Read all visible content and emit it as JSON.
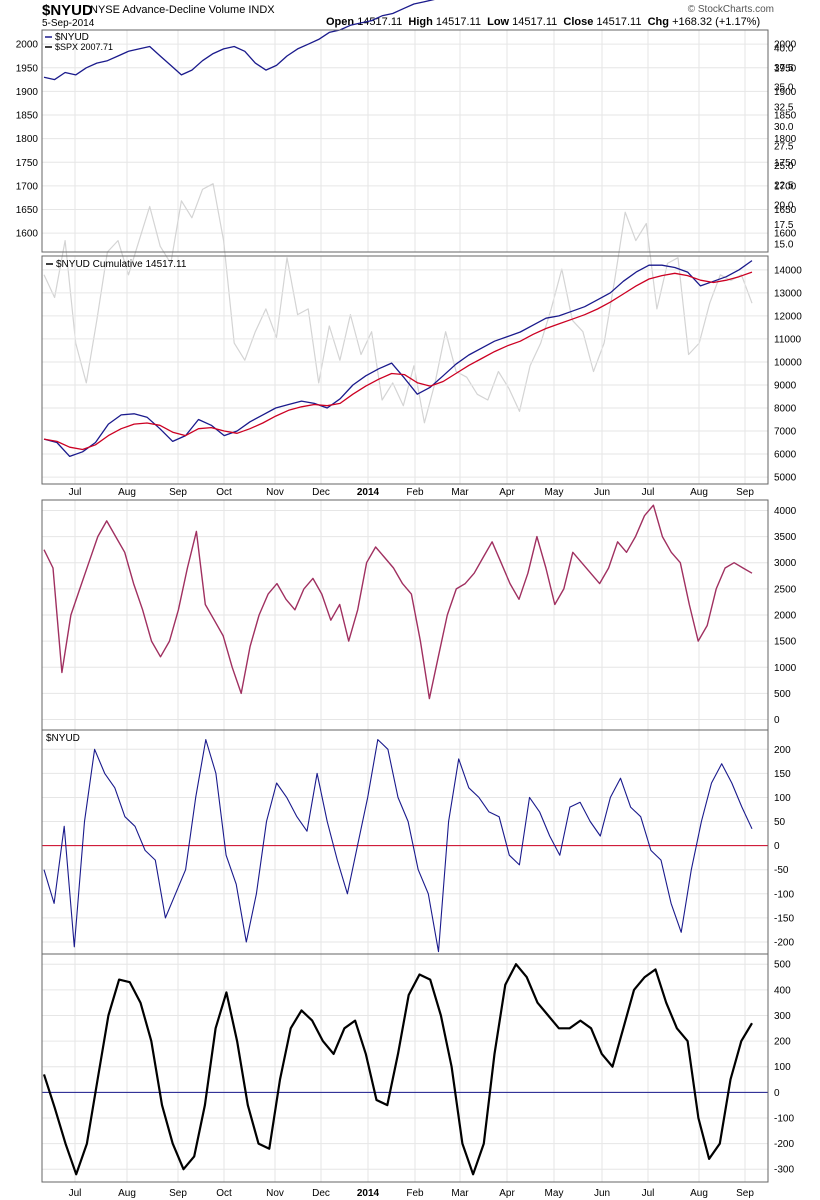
{
  "header": {
    "symbol": "$NYUD",
    "name": "NYSE Advance-Decline Volume INDX",
    "date": "5-Sep-2014",
    "open_label": "Open",
    "open": "14517.11",
    "high_label": "High",
    "high": "14517.11",
    "low_label": "Low",
    "low": "14517.11",
    "close_label": "Close",
    "close": "14517.11",
    "chg_label": "Chg",
    "chg": "+168.32 (+1.17%)",
    "watermark": "© StockCharts.com"
  },
  "colors": {
    "nyud_line": "#1a1a8c",
    "spx_line": "#d4d4d4",
    "moving_avg": "#cc0022",
    "panel3_line": "#a03060",
    "zero_line_red": "#cc0022",
    "zero_line_blue": "#1a1a8c",
    "oscillator": "#000000",
    "grid": "#e6e6e6",
    "frame": "#666666"
  },
  "chart_data": [
    {
      "type": "line",
      "panel": "price",
      "series": [
        {
          "name": "$NYUD",
          "values": [
            1840,
            1800,
            1900,
            1720,
            1650,
            1760,
            1880,
            1900,
            1840,
            1900,
            1960,
            1890,
            1860,
            1970,
            1940,
            1990,
            2000,
            1900,
            1720,
            1690,
            1740,
            1780,
            1730,
            1870,
            1770,
            1780,
            1650,
            1750,
            1690,
            1770,
            1700,
            1740,
            1620,
            1650,
            1610,
            1680,
            1580,
            1650,
            1740,
            1670,
            1660,
            1630,
            1620,
            1670,
            1640,
            1600,
            1680,
            1720,
            1780,
            1850,
            1760,
            1740,
            1670,
            1720,
            1830,
            1950,
            1900,
            1930,
            1780,
            1860,
            1870,
            1700,
            1720,
            1790,
            1840,
            1830,
            1840,
            1790
          ]
        },
        {
          "name": "$SPX",
          "values": [
            1930,
            1925,
            1940,
            1935,
            1950,
            1960,
            1965,
            1975,
            1985,
            1990,
            1995,
            1975,
            1955,
            1935,
            1945,
            1965,
            1980,
            1990,
            1995,
            1985,
            1960,
            1945,
            1955,
            1975,
            1990,
            2000,
            2010,
            2025,
            2030,
            2040,
            2045,
            2050,
            2060,
            2065,
            2075,
            2085,
            2090,
            2095,
            2100,
            2105,
            2110,
            2115,
            2120,
            2125,
            2130,
            2135,
            2140,
            2145,
            2150,
            2155,
            2160,
            2165,
            2160,
            2155,
            2160,
            2170,
            2185,
            2195,
            2200,
            2190,
            2180,
            2195,
            2210,
            2220,
            2230,
            2240,
            2245,
            2250
          ]
        }
      ],
      "ylim": [
        1560,
        2030
      ],
      "y_ticks": [
        "2000",
        "1950",
        "1900",
        "1850",
        "1800",
        "1750",
        "1700",
        "1650",
        "1600"
      ],
      "y2_ticks": [
        "40.0",
        "37.5",
        "35.0",
        "32.5",
        "30.0",
        "27.5",
        "25.0",
        "22.5",
        "20.0",
        "17.5",
        "15.0"
      ],
      "legend": [
        "$NYUD",
        "$SPX 2007.71"
      ],
      "legend_position": "top-left"
    },
    {
      "type": "line",
      "panel": "cumulative",
      "series": [
        {
          "name": "$NYUD Cumulative 14517.11",
          "values": [
            6650,
            6500,
            5900,
            6100,
            6500,
            7300,
            7700,
            7750,
            7600,
            7100,
            6550,
            6800,
            7500,
            7250,
            6800,
            7000,
            7400,
            7700,
            8000,
            8150,
            8300,
            8200,
            8000,
            8400,
            9000,
            9400,
            9700,
            9950,
            9300,
            8600,
            8900,
            9400,
            9900,
            10300,
            10600,
            10900,
            11100,
            11300,
            11600,
            11900,
            12000,
            12200,
            12400,
            12700,
            13000,
            13500,
            13900,
            14200,
            14200,
            14100,
            13900,
            13300,
            13500,
            13700,
            14000,
            14400
          ]
        },
        {
          "name": "MA",
          "values": [
            6650,
            6550,
            6300,
            6200,
            6400,
            6800,
            7100,
            7300,
            7350,
            7250,
            6950,
            6800,
            7100,
            7150,
            7000,
            6900,
            7100,
            7350,
            7650,
            7900,
            8050,
            8150,
            8100,
            8200,
            8600,
            8950,
            9250,
            9500,
            9450,
            9100,
            8950,
            9150,
            9500,
            9850,
            10150,
            10450,
            10700,
            10900,
            11200,
            11450,
            11650,
            11850,
            12050,
            12300,
            12600,
            12950,
            13300,
            13600,
            13750,
            13850,
            13750,
            13550,
            13450,
            13550,
            13700,
            13900
          ]
        }
      ],
      "ylim": [
        4700,
        14600
      ],
      "y_ticks": [
        "14000",
        "13000",
        "12000",
        "11000",
        "10000",
        "9000",
        "8000",
        "7000",
        "6000",
        "5000"
      ]
    },
    {
      "type": "line",
      "panel": "indicator",
      "series": [
        {
          "name": "",
          "values": [
            3250,
            2900,
            900,
            2000,
            2500,
            3000,
            3500,
            3800,
            3500,
            3200,
            2600,
            2100,
            1500,
            1200,
            1500,
            2100,
            2900,
            3600,
            2200,
            1900,
            1600,
            1000,
            500,
            1400,
            2000,
            2400,
            2600,
            2300,
            2100,
            2500,
            2700,
            2400,
            1900,
            2200,
            1500,
            2100,
            3000,
            3300,
            3100,
            2900,
            2600,
            2400,
            1500,
            400,
            1200,
            2000,
            2500,
            2600,
            2800,
            3100,
            3400,
            3000,
            2600,
            2300,
            2800,
            3500,
            2900,
            2200,
            2500,
            3200,
            3000,
            2800,
            2600,
            2900,
            3400,
            3200,
            3500,
            3900,
            4100,
            3500,
            3200,
            3000,
            2200,
            1500,
            1800,
            2500,
            2900,
            3000,
            2900,
            2800
          ]
        }
      ],
      "ylim": [
        -200,
        4200
      ],
      "y_ticks": [
        "4000",
        "3500",
        "3000",
        "2500",
        "2000",
        "1500",
        "1000",
        "500",
        "0"
      ]
    },
    {
      "type": "line",
      "panel": "nyud",
      "series": [
        {
          "name": "$NYUD",
          "values": [
            -50,
            -120,
            40,
            -210,
            50,
            200,
            150,
            120,
            60,
            40,
            -10,
            -30,
            -150,
            -100,
            -50,
            100,
            220,
            150,
            -20,
            -80,
            -200,
            -100,
            50,
            130,
            100,
            60,
            30,
            150,
            50,
            -30,
            -100,
            0,
            100,
            220,
            200,
            100,
            50,
            -50,
            -100,
            -220,
            50,
            180,
            120,
            100,
            70,
            60,
            -20,
            -40,
            100,
            70,
            20,
            -20,
            80,
            90,
            50,
            20,
            100,
            140,
            80,
            60,
            -10,
            -30,
            -120,
            -180,
            -50,
            50,
            130,
            170,
            130,
            80,
            35
          ]
        }
      ],
      "ylim": [
        -225,
        240
      ],
      "y_ticks": [
        "200",
        "150",
        "100",
        "50",
        "0",
        "-50",
        "-100",
        "-150",
        "-200"
      ],
      "legend": [
        "$NYUD"
      ],
      "legend_position": "top-left"
    },
    {
      "type": "line",
      "panel": "oscillator",
      "series": [
        {
          "name": "",
          "values": [
            70,
            -60,
            -200,
            -320,
            -200,
            50,
            300,
            440,
            430,
            350,
            200,
            -50,
            -200,
            -300,
            -250,
            -50,
            250,
            390,
            200,
            -50,
            -200,
            -220,
            50,
            250,
            320,
            280,
            200,
            150,
            250,
            280,
            150,
            -30,
            -50,
            150,
            380,
            460,
            440,
            300,
            100,
            -200,
            -320,
            -200,
            150,
            420,
            500,
            450,
            350,
            300,
            250,
            250,
            280,
            250,
            150,
            100,
            250,
            400,
            450,
            480,
            350,
            250,
            200,
            -100,
            -260,
            -200,
            50,
            200,
            270
          ]
        }
      ],
      "ylim": [
        -350,
        540
      ],
      "y_ticks": [
        "500",
        "400",
        "300",
        "200",
        "100",
        "0",
        "-100",
        "-200",
        "-300"
      ]
    }
  ],
  "x_axis": {
    "labels": [
      "Jul",
      "Aug",
      "Sep",
      "Oct",
      "Nov",
      "Dec",
      "2014",
      "Feb",
      "Mar",
      "Apr",
      "May",
      "Jun",
      "Jul",
      "Aug",
      "Sep"
    ]
  }
}
